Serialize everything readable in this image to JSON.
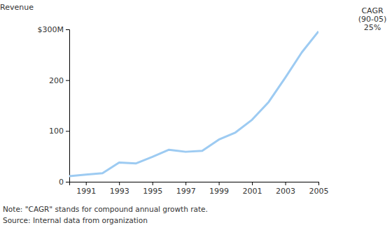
{
  "chart_data": {
    "type": "line",
    "y_label": "Revenue",
    "annotations": [
      "CAGR",
      "(90-05)",
      "25%"
    ],
    "notes": [
      "Note: \"CAGR\" stands for compound annual growth rate.",
      "Source: Internal data from organization"
    ],
    "x": [
      1990,
      1991,
      1992,
      1993,
      1994,
      1995,
      1996,
      1997,
      1998,
      1999,
      2000,
      2001,
      2002,
      2003,
      2004,
      2005
    ],
    "values": [
      11,
      14,
      17,
      38,
      36,
      49,
      63,
      59,
      61,
      83,
      97,
      122,
      157,
      205,
      255,
      296
    ],
    "color": "#9dcbf2",
    "xlim": [
      1990,
      2005
    ],
    "xticks": [
      1991,
      1993,
      1995,
      1997,
      1999,
      2001,
      2003,
      2005
    ],
    "ylim": [
      0,
      300
    ],
    "yticks": [
      0,
      100,
      200,
      {
        "value": 300,
        "label": "$300M"
      }
    ],
    "grid": false
  }
}
